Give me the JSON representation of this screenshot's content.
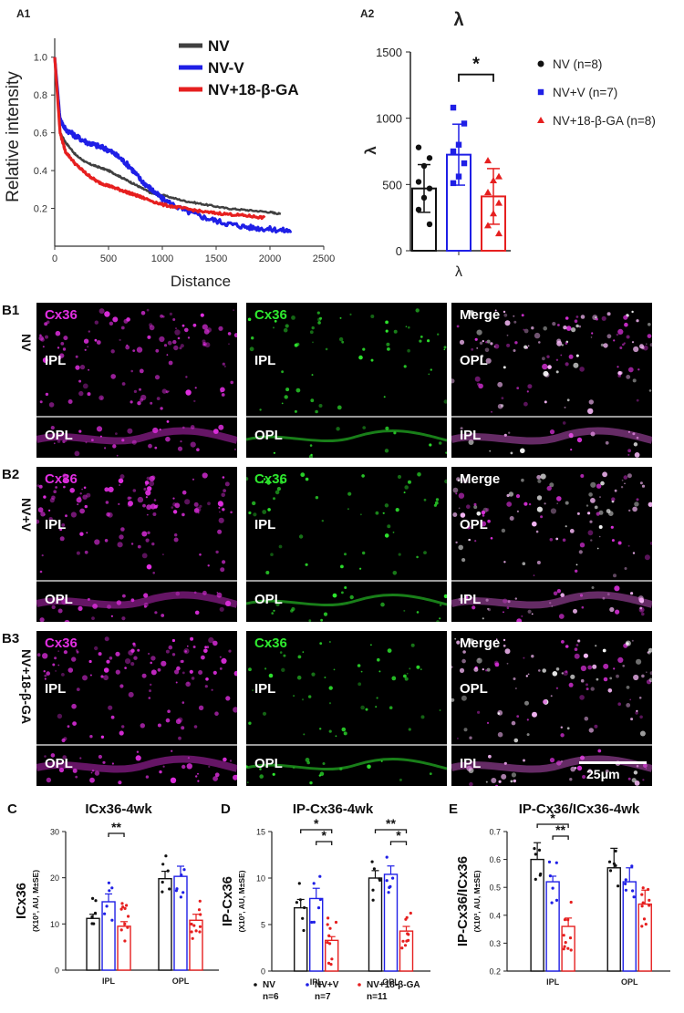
{
  "panel_a1": {
    "label": "A1",
    "chart_data": {
      "type": "line",
      "title": "",
      "xlabel": "Distance",
      "ylabel": "Relative intensity",
      "xlim": [
        0,
        2500
      ],
      "ylim": [
        0,
        1.1
      ],
      "xticks": [
        "0",
        "500",
        "1000",
        "1500",
        "2000",
        "2500"
      ],
      "yticks": [
        "0.2",
        "0.4",
        "0.6",
        "0.8",
        "1.0"
      ],
      "legend": "top-right",
      "series": [
        {
          "name": "NV",
          "color": "#404040",
          "x": [
            0,
            50,
            100,
            200,
            300,
            400,
            500,
            600,
            700,
            800,
            900,
            1000,
            1200,
            1400,
            1600,
            1800,
            2000,
            2100
          ],
          "y": [
            1.0,
            0.6,
            0.55,
            0.48,
            0.44,
            0.42,
            0.4,
            0.37,
            0.34,
            0.31,
            0.28,
            0.27,
            0.24,
            0.22,
            0.2,
            0.19,
            0.18,
            0.17
          ]
        },
        {
          "name": "NV-V",
          "color": "#1f1fe6",
          "x": [
            0,
            50,
            100,
            200,
            300,
            400,
            500,
            600,
            700,
            800,
            900,
            1000,
            1200,
            1400,
            1600,
            1800,
            2000,
            2200
          ],
          "y": [
            1.0,
            0.67,
            0.62,
            0.58,
            0.55,
            0.53,
            0.51,
            0.47,
            0.42,
            0.35,
            0.3,
            0.25,
            0.19,
            0.15,
            0.12,
            0.1,
            0.09,
            0.08
          ]
        },
        {
          "name": "NV+18-β-GA",
          "color": "#e61f1f",
          "x": [
            0,
            50,
            100,
            200,
            300,
            400,
            500,
            600,
            700,
            800,
            1000,
            1200,
            1400,
            1600,
            1800,
            1950
          ],
          "y": [
            1.0,
            0.6,
            0.5,
            0.43,
            0.38,
            0.34,
            0.32,
            0.3,
            0.28,
            0.26,
            0.22,
            0.2,
            0.18,
            0.17,
            0.16,
            0.15
          ]
        }
      ]
    }
  },
  "panel_a2": {
    "label": "A2",
    "chart_data": {
      "type": "bar",
      "title": "λ",
      "ylabel": "λ",
      "xlabel": "λ",
      "ylim": [
        0,
        1500
      ],
      "yticks": [
        "0",
        "500",
        "1000",
        "1500"
      ],
      "significance": "*",
      "legend": "right",
      "series": [
        {
          "name": "NV (n=8)",
          "color": "#111111",
          "marker": "circle",
          "mean": 470,
          "sd": 180,
          "points": [
            780,
            700,
            640,
            520,
            470,
            400,
            310,
            200
          ]
        },
        {
          "name": "NV+V (n=7)",
          "color": "#1f1fe6",
          "marker": "square",
          "mean": 725,
          "sd": 230,
          "points": [
            1080,
            960,
            800,
            750,
            660,
            560,
            510
          ]
        },
        {
          "name": "NV+18-β-GA (n=8)",
          "color": "#e61f1f",
          "marker": "triangle",
          "mean": 410,
          "sd": 210,
          "points": [
            680,
            560,
            530,
            440,
            360,
            280,
            190,
            130
          ]
        }
      ]
    }
  },
  "micrographs": {
    "rows": [
      {
        "label": "B1",
        "condition": "NV"
      },
      {
        "label": "B2",
        "condition": "NV+V"
      },
      {
        "label": "B3",
        "condition": "NV+18-β-GA"
      }
    ],
    "channels": [
      {
        "name": "Cx36",
        "color": "#e12ee1"
      },
      {
        "name": "Cx36",
        "color": "#2ee82e"
      },
      {
        "name": "Merge",
        "color": "#ffffff"
      }
    ],
    "strip_labels": {
      "ipl": "IPL",
      "opl": "OPL"
    },
    "scale_bar": "25μm"
  },
  "panel_c": {
    "label": "C",
    "chart_data": {
      "type": "bar",
      "title": "ICx36-4wk",
      "ylabel": "ICx36",
      "ylabel_sub": "(X10³, AU, M±SE)",
      "categories": [
        "IPL",
        "OPL"
      ],
      "ylim": [
        0,
        30
      ],
      "yticks": [
        "0",
        "10",
        "20",
        "30"
      ],
      "significance": [
        "**"
      ],
      "series": [
        {
          "name": "NV",
          "color": "#111111",
          "values": [
            11.2,
            19.8
          ],
          "err": [
            0.9,
            1.6
          ]
        },
        {
          "name": "NV+V",
          "color": "#1f1fe6",
          "values": [
            14.8,
            20.3
          ],
          "err": [
            1.7,
            2.2
          ]
        },
        {
          "name": "NV+18-β-GA",
          "color": "#e61f1f",
          "values": [
            9.5,
            10.8
          ],
          "err": [
            1.0,
            1.3
          ]
        }
      ]
    }
  },
  "panel_d": {
    "label": "D",
    "chart_data": {
      "type": "bar",
      "title": "IP-Cx36-4wk",
      "ylabel": "IP-Cx36",
      "ylabel_sub": "(X10³, AU, M±SE)",
      "categories": [
        "IPL",
        "OPL"
      ],
      "ylim": [
        0,
        15
      ],
      "yticks": [
        "0",
        "5",
        "10",
        "15"
      ],
      "significance": [
        "*",
        "*",
        "**",
        "*"
      ],
      "series": [
        {
          "name": "NV",
          "color": "#111111",
          "values": [
            6.8,
            10.0
          ],
          "err": [
            0.9,
            0.8
          ]
        },
        {
          "name": "NV+V",
          "color": "#1f1fe6",
          "values": [
            7.8,
            10.4
          ],
          "err": [
            1.1,
            0.9
          ]
        },
        {
          "name": "NV+18-β-GA",
          "color": "#e61f1f",
          "values": [
            3.3,
            4.3
          ],
          "err": [
            0.4,
            0.5
          ]
        }
      ]
    }
  },
  "panel_e": {
    "label": "E",
    "chart_data": {
      "type": "bar",
      "title": "IP-Cx36/ICx36-4wk",
      "ylabel": "IP-Cx36/ICx36",
      "ylabel_sub": "(X10³, AU, M±SE)",
      "categories": [
        "IPL",
        "OPL"
      ],
      "ylim": [
        0.2,
        0.7
      ],
      "yticks": [
        "0.2",
        "0.3",
        "0.4",
        "0.5",
        "0.6",
        "0.7"
      ],
      "significance": [
        "*",
        "**"
      ],
      "series": [
        {
          "name": "NV",
          "color": "#111111",
          "values": [
            0.6,
            0.57
          ],
          "err": [
            0.06,
            0.07
          ]
        },
        {
          "name": "NV+V",
          "color": "#1f1fe6",
          "values": [
            0.52,
            0.52
          ],
          "err": [
            0.02,
            0.05
          ]
        },
        {
          "name": "NV+18-β-GA",
          "color": "#e61f1f",
          "values": [
            0.36,
            0.44
          ],
          "err": [
            0.03,
            0.05
          ]
        }
      ]
    }
  },
  "bottom_legend": [
    {
      "name": "NV",
      "n": "n=6",
      "color": "#111111"
    },
    {
      "name": "NV+V",
      "n": "n=7",
      "color": "#1f1fe6"
    },
    {
      "name": "NV+18-β-GA",
      "n": "n=11",
      "color": "#e61f1f"
    }
  ],
  "colors": {
    "nv": "#111111",
    "nvv": "#1f1fe6",
    "ga": "#e61f1f",
    "magenta": "#e12ee1",
    "green": "#2ee82e"
  }
}
